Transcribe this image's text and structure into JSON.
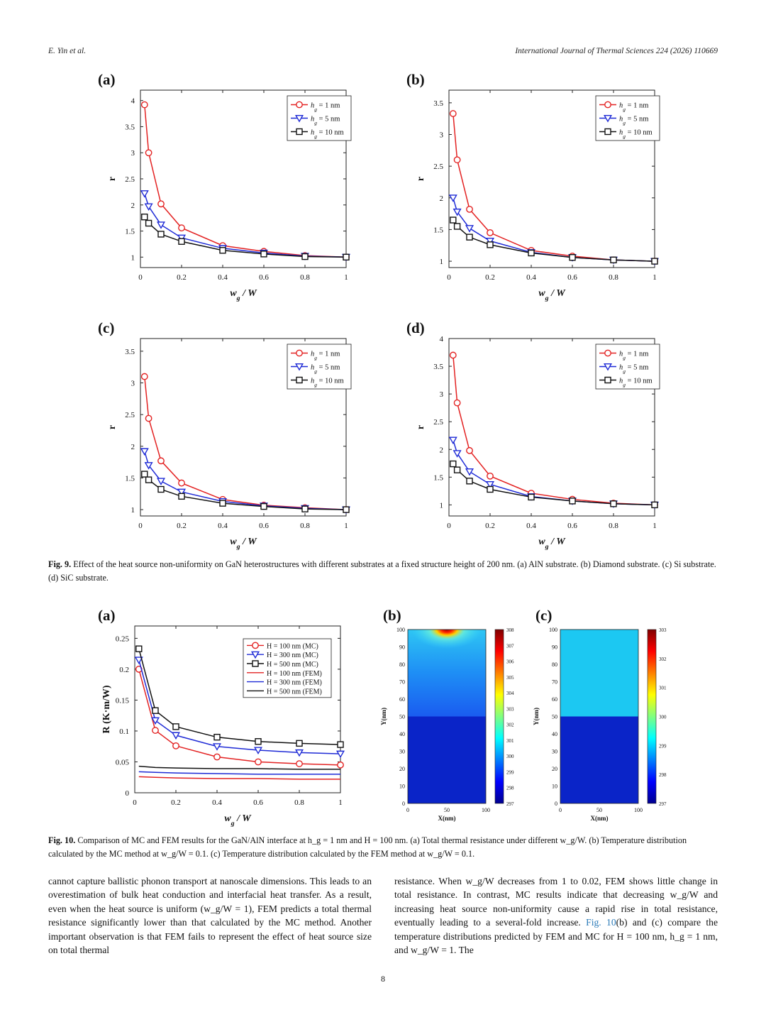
{
  "header": {
    "authors": "E. Yin et al.",
    "journal": "International Journal of Thermal Sciences 224 (2026) 110669"
  },
  "fig9": {
    "caption_label": "Fig. 9.",
    "caption_text": "Effect of the heat source non-uniformity on GaN heterostructures with different substrates at a fixed structure height of 200 nm. (a) AlN substrate. (b) Diamond substrate. (c) Si substrate. (d) SiC substrate."
  },
  "fig10": {
    "caption_label": "Fig. 10.",
    "caption_text": "Comparison of MC and FEM results for the GaN/AlN interface at h_g = 1 nm and H = 100 nm. (a) Total thermal resistance under different w_g/W. (b) Temperature distribution calculated by the MC method at w_g/W = 0.1. (c) Temperature distribution calculated by the FEM method at w_g/W = 0.1."
  },
  "chart_data": [
    {
      "type": "line",
      "panel": "(a)",
      "xlabel": "w_g / W",
      "ylabel": "r",
      "xlim": [
        0,
        1
      ],
      "ylim": [
        0.8,
        4.2
      ],
      "xticks": [
        0,
        0.2,
        0.4,
        0.6,
        0.8,
        1
      ],
      "yticks": [
        1,
        1.5,
        2,
        2.5,
        3,
        3.5,
        4
      ],
      "legend": "top-right",
      "x": [
        0.02,
        0.04,
        0.1,
        0.2,
        0.4,
        0.6,
        0.8,
        1
      ],
      "series": [
        {
          "name": "h_g = 1 nm",
          "marker": "circle",
          "color": "#e32222",
          "values": [
            3.92,
            3.0,
            2.02,
            1.56,
            1.22,
            1.11,
            1.03,
            1.0
          ]
        },
        {
          "name": "h_g = 5 nm",
          "marker": "triangle-down",
          "color": "#1f2bd6",
          "values": [
            2.22,
            1.97,
            1.62,
            1.37,
            1.17,
            1.08,
            1.02,
            1.0
          ]
        },
        {
          "name": "h_g = 10 nm",
          "marker": "square",
          "color": "#111111",
          "values": [
            1.77,
            1.65,
            1.44,
            1.3,
            1.13,
            1.06,
            1.01,
            1.0
          ]
        }
      ]
    },
    {
      "type": "line",
      "panel": "(b)",
      "xlabel": "w_g / W",
      "ylabel": "r",
      "xlim": [
        0,
        1
      ],
      "ylim": [
        0.9,
        3.7
      ],
      "xticks": [
        0,
        0.2,
        0.4,
        0.6,
        0.8,
        1
      ],
      "yticks": [
        1,
        1.5,
        2,
        2.5,
        3,
        3.5
      ],
      "legend": "top-right",
      "x": [
        0.02,
        0.04,
        0.1,
        0.2,
        0.4,
        0.6,
        0.8,
        1
      ],
      "series": [
        {
          "name": "h_g = 1 nm",
          "marker": "circle",
          "color": "#e32222",
          "values": [
            3.33,
            2.6,
            1.82,
            1.45,
            1.17,
            1.08,
            1.02,
            1.0
          ]
        },
        {
          "name": "h_g = 5 nm",
          "marker": "triangle-down",
          "color": "#1f2bd6",
          "values": [
            2.0,
            1.78,
            1.52,
            1.32,
            1.14,
            1.06,
            1.02,
            1.0
          ]
        },
        {
          "name": "h_g = 10 nm",
          "marker": "square",
          "color": "#111111",
          "values": [
            1.65,
            1.55,
            1.38,
            1.26,
            1.13,
            1.06,
            1.02,
            1.0
          ]
        }
      ]
    },
    {
      "type": "line",
      "panel": "(c)",
      "xlabel": "w_g / W",
      "ylabel": "r",
      "xlim": [
        0,
        1
      ],
      "ylim": [
        0.9,
        3.7
      ],
      "xticks": [
        0,
        0.2,
        0.4,
        0.6,
        0.8,
        1
      ],
      "yticks": [
        1,
        1.5,
        2,
        2.5,
        3,
        3.5
      ],
      "legend": "top-right",
      "x": [
        0.02,
        0.04,
        0.1,
        0.2,
        0.4,
        0.6,
        0.8,
        1
      ],
      "series": [
        {
          "name": "h_g = 1 nm",
          "marker": "circle",
          "color": "#e32222",
          "values": [
            3.1,
            2.44,
            1.77,
            1.42,
            1.16,
            1.07,
            1.03,
            1.0
          ]
        },
        {
          "name": "h_g = 5 nm",
          "marker": "triangle-down",
          "color": "#1f2bd6",
          "values": [
            1.92,
            1.7,
            1.45,
            1.28,
            1.13,
            1.06,
            1.02,
            1.0
          ]
        },
        {
          "name": "h_g = 10 nm",
          "marker": "square",
          "color": "#111111",
          "values": [
            1.56,
            1.47,
            1.32,
            1.21,
            1.1,
            1.05,
            1.01,
            1.0
          ]
        }
      ]
    },
    {
      "type": "line",
      "panel": "(d)",
      "xlabel": "w_g / W",
      "ylabel": "r",
      "xlim": [
        0,
        1
      ],
      "ylim": [
        0.8,
        4.0
      ],
      "xticks": [
        0,
        0.2,
        0.4,
        0.6,
        0.8,
        1
      ],
      "yticks": [
        1,
        1.5,
        2,
        2.5,
        3,
        3.5,
        4
      ],
      "legend": "top-right",
      "x": [
        0.02,
        0.04,
        0.1,
        0.2,
        0.4,
        0.6,
        0.8,
        1
      ],
      "series": [
        {
          "name": "h_g = 1 nm",
          "marker": "circle",
          "color": "#e32222",
          "values": [
            3.7,
            2.84,
            1.98,
            1.52,
            1.21,
            1.1,
            1.03,
            1.0
          ]
        },
        {
          "name": "h_g = 5 nm",
          "marker": "triangle-down",
          "color": "#1f2bd6",
          "values": [
            2.17,
            1.93,
            1.6,
            1.37,
            1.15,
            1.07,
            1.02,
            1.0
          ]
        },
        {
          "name": "h_g = 10 nm",
          "marker": "square",
          "color": "#111111",
          "values": [
            1.74,
            1.63,
            1.43,
            1.28,
            1.14,
            1.07,
            1.02,
            1.0
          ]
        }
      ]
    },
    {
      "type": "line",
      "panel": "(a)",
      "xlabel": "w_g / W",
      "ylabel": "R (K·m/W)",
      "xlim": [
        0,
        1
      ],
      "ylim": [
        0,
        0.27
      ],
      "xticks": [
        0,
        0.2,
        0.4,
        0.6,
        0.8,
        1
      ],
      "yticks": [
        0,
        0.05,
        0.1,
        0.15,
        0.2,
        0.25
      ],
      "legend": "top-right",
      "x": [
        0.02,
        0.1,
        0.2,
        0.4,
        0.6,
        0.8,
        1
      ],
      "series": [
        {
          "name": "H = 100 nm (MC)",
          "marker": "circle",
          "color": "#e32222",
          "values": [
            0.2,
            0.101,
            0.076,
            0.058,
            0.05,
            0.047,
            0.045
          ]
        },
        {
          "name": "H = 300 nm (MC)",
          "marker": "triangle-down",
          "color": "#1f2bd6",
          "values": [
            0.215,
            0.117,
            0.093,
            0.075,
            0.069,
            0.065,
            0.063
          ]
        },
        {
          "name": "H = 500 nm (MC)",
          "marker": "square",
          "color": "#111111",
          "values": [
            0.233,
            0.133,
            0.107,
            0.09,
            0.083,
            0.08,
            0.078
          ]
        },
        {
          "name": "H = 100 nm (FEM)",
          "marker": "none",
          "color": "#e32222",
          "values": [
            0.026,
            0.025,
            0.024,
            0.023,
            0.023,
            0.022,
            0.022
          ]
        },
        {
          "name": "H = 300 nm (FEM)",
          "marker": "none",
          "color": "#1f2bd6",
          "values": [
            0.034,
            0.033,
            0.032,
            0.031,
            0.03,
            0.03,
            0.03
          ]
        },
        {
          "name": "H = 500 nm (FEM)",
          "marker": "none",
          "color": "#111111",
          "values": [
            0.043,
            0.041,
            0.04,
            0.039,
            0.039,
            0.038,
            0.038
          ]
        }
      ]
    },
    {
      "type": "heatmap",
      "panel": "(b)",
      "xlabel": "X(nm)",
      "ylabel": "Y(nm)",
      "xticks": [
        0,
        50,
        100
      ],
      "yticks": [
        0,
        10,
        20,
        30,
        40,
        50,
        60,
        70,
        80,
        90,
        100
      ],
      "colorbar_ticks": [
        297,
        298,
        299,
        300,
        301,
        302,
        303,
        304,
        305,
        306,
        307,
        308
      ]
    },
    {
      "type": "heatmap",
      "panel": "(c)",
      "xlabel": "X(nm)",
      "ylabel": "Y(nm)",
      "xticks": [
        0,
        50,
        100
      ],
      "yticks": [
        0,
        10,
        20,
        30,
        40,
        50,
        60,
        70,
        80,
        90,
        100
      ],
      "colorbar_ticks": [
        297,
        298,
        299,
        300,
        301,
        302,
        303
      ]
    }
  ],
  "body": {
    "left": "cannot capture ballistic phonon transport at nanoscale dimensions. This leads to an overestimation of bulk heat conduction and interfacial heat transfer. As a result, even when the heat source is uniform (w_g/W = 1), FEM predicts a total thermal resistance significantly lower than that calculated by the MC method. Another important observation is that FEM fails to represent the effect of heat source size on total thermal",
    "right_1": "resistance. When w_g/W decreases from 1 to 0.02, FEM shows little change in total resistance. In contrast, MC results indicate that decreasing w_g/W and increasing heat source non-uniformity cause a rapid rise in total resistance, eventually leading to a several-fold increase.",
    "right_link": "Fig. 10",
    "right_2": "(b) and (c) compare the temperature distributions predicted by FEM and MC for H = 100 nm, h_g = 1 nm, and w_g/W = 1. The"
  },
  "page_number": "8"
}
